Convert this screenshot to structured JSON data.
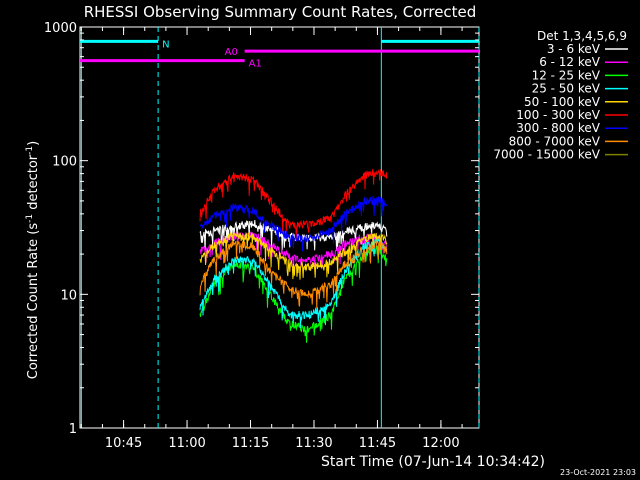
{
  "chart_data": {
    "type": "line",
    "title": "RHESSI Observing Summary Count Rates, Corrected",
    "xlabel": "Start Time (07-Jun-14 10:34:42)",
    "ylabel_main": "Corrected Count Rate (s",
    "ylabel_sup1": "-1",
    "ylabel_mid": " detector",
    "ylabel_sup2": "-1",
    "ylabel_end": ")",
    "yscale": "log",
    "ylim": [
      1,
      1000
    ],
    "xlim": [
      "10:34:42",
      "12:09:00"
    ],
    "x_ticks": [
      "10:45",
      "11:00",
      "11:15",
      "11:30",
      "11:45",
      "12:00"
    ],
    "y_ticks": [
      "1",
      "10",
      "100",
      "1000"
    ],
    "legend_title": "Det 1,3,4,5,6,9",
    "series": [
      {
        "name": "3 - 6 keV",
        "color": "#ffffff",
        "min_t": 43,
        "values": [
          [
            43,
            28
          ],
          [
            48,
            30
          ],
          [
            55,
            32
          ],
          [
            62,
            34
          ],
          [
            70,
            30
          ],
          [
            75,
            27
          ],
          [
            82,
            26
          ],
          [
            90,
            27
          ],
          [
            95,
            29
          ],
          [
            102,
            32
          ],
          [
            107,
            33
          ],
          [
            110,
            31
          ]
        ]
      },
      {
        "name": "6 - 12 keV",
        "color": "#ff00ff",
        "min_t": 43,
        "values": [
          [
            43,
            21
          ],
          [
            48,
            24
          ],
          [
            55,
            27
          ],
          [
            62,
            28
          ],
          [
            68,
            24
          ],
          [
            75,
            19
          ],
          [
            82,
            18
          ],
          [
            90,
            20
          ],
          [
            95,
            24
          ],
          [
            102,
            27
          ],
          [
            107,
            26
          ],
          [
            110,
            23
          ]
        ]
      },
      {
        "name": "12 - 25 keV",
        "color": "#00ff00",
        "min_t": 43,
        "values": [
          [
            43,
            7
          ],
          [
            48,
            12
          ],
          [
            55,
            17
          ],
          [
            62,
            16
          ],
          [
            68,
            10
          ],
          [
            75,
            6
          ],
          [
            82,
            5.5
          ],
          [
            90,
            7
          ],
          [
            95,
            13
          ],
          [
            102,
            20
          ],
          [
            107,
            22
          ],
          [
            110,
            18
          ]
        ]
      },
      {
        "name": "25 - 50 keV",
        "color": "#00ffff",
        "min_t": 43,
        "values": [
          [
            43,
            8
          ],
          [
            48,
            13
          ],
          [
            55,
            18
          ],
          [
            62,
            18
          ],
          [
            68,
            12
          ],
          [
            75,
            7
          ],
          [
            82,
            7
          ],
          [
            90,
            8.5
          ],
          [
            95,
            15
          ],
          [
            102,
            23
          ],
          [
            107,
            25
          ],
          [
            110,
            21
          ]
        ]
      },
      {
        "name": "50 - 100 keV",
        "color": "#ffd700",
        "min_t": 43,
        "values": [
          [
            43,
            18
          ],
          [
            48,
            23
          ],
          [
            55,
            28
          ],
          [
            62,
            27
          ],
          [
            68,
            22
          ],
          [
            75,
            17
          ],
          [
            82,
            16
          ],
          [
            90,
            17.5
          ],
          [
            95,
            21
          ],
          [
            102,
            26
          ],
          [
            107,
            27
          ],
          [
            110,
            25
          ]
        ]
      },
      {
        "name": "100 - 300 keV",
        "color": "#ff0000",
        "min_t": 43,
        "values": [
          [
            43,
            40
          ],
          [
            48,
            60
          ],
          [
            55,
            78
          ],
          [
            62,
            73
          ],
          [
            68,
            50
          ],
          [
            75,
            33
          ],
          [
            82,
            33
          ],
          [
            90,
            37
          ],
          [
            95,
            55
          ],
          [
            102,
            78
          ],
          [
            107,
            82
          ],
          [
            110,
            78
          ]
        ]
      },
      {
        "name": "300 - 800 keV",
        "color": "#0000ff",
        "min_t": 43,
        "values": [
          [
            43,
            32
          ],
          [
            48,
            38
          ],
          [
            55,
            45
          ],
          [
            62,
            42
          ],
          [
            68,
            33
          ],
          [
            75,
            27
          ],
          [
            82,
            26
          ],
          [
            90,
            30
          ],
          [
            95,
            40
          ],
          [
            102,
            50
          ],
          [
            107,
            52
          ],
          [
            110,
            47
          ]
        ]
      },
      {
        "name": "800 - 7000 keV",
        "color": "#ff8c00",
        "min_t": 43,
        "values": [
          [
            43,
            12
          ],
          [
            48,
            18
          ],
          [
            55,
            24
          ],
          [
            62,
            23
          ],
          [
            68,
            15
          ],
          [
            75,
            11
          ],
          [
            82,
            10
          ],
          [
            90,
            12
          ],
          [
            95,
            17
          ],
          [
            102,
            22
          ],
          [
            107,
            24
          ],
          [
            110,
            21
          ]
        ]
      },
      {
        "name": "7000 - 15000 keV",
        "color": "#808000",
        "min_t": 43,
        "values": []
      }
    ],
    "flags": [
      {
        "label": "N",
        "color": "#00ffff",
        "segments": [
          [
            0,
            28
          ],
          [
            108,
            143
          ]
        ],
        "level": 780
      },
      {
        "label": "A0",
        "color": "#ff00ff",
        "segments": [
          [
            59,
            143
          ]
        ],
        "level": 660
      },
      {
        "label": "A1",
        "color": "#ff00ff",
        "segments": [
          [
            0,
            59
          ]
        ],
        "level": 560
      }
    ],
    "vlines": [
      {
        "t": 28,
        "color": "#00ffff",
        "style": "dashed"
      },
      {
        "t": 0.5,
        "color": "#00ffff",
        "style": "solid"
      },
      {
        "t": 108,
        "color": "#00ffff",
        "style": "solid"
      },
      {
        "t": 143,
        "color": "#00ffff",
        "style": "dashed"
      }
    ],
    "timestamp": "23-Oct-2021 23:03"
  }
}
